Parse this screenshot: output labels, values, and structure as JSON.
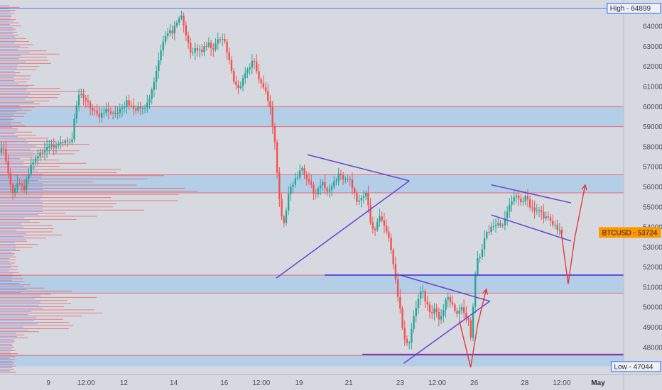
{
  "chart_data": {
    "type": "candlestick",
    "symbol": "BTCUSD",
    "ylim": [
      46650,
      65100
    ],
    "y_ticks": [
      48000,
      49000,
      50000,
      51000,
      52000,
      53000,
      54000,
      55000,
      56000,
      57000,
      58000,
      59000,
      60000,
      61000,
      62000,
      63000,
      64000
    ],
    "y_tick_labels": [
      "48000",
      "49000",
      "50000",
      "51000",
      "52000",
      "53000",
      "54000",
      "55000",
      "56000",
      "57000",
      "58000",
      "59000",
      "60000",
      "61000",
      "62000",
      "63000",
      "64000"
    ],
    "x_range": [
      0,
      840
    ],
    "x_ticks": [
      {
        "t": 68,
        "label": "9",
        "bold": false
      },
      {
        "t": 121,
        "label": "12:00",
        "bold": false
      },
      {
        "t": 174,
        "label": "12",
        "bold": false
      },
      {
        "t": 244,
        "label": "14",
        "bold": false
      },
      {
        "t": 315,
        "label": "16",
        "bold": false
      },
      {
        "t": 367,
        "label": "12:00",
        "bold": false
      },
      {
        "t": 420,
        "label": "19",
        "bold": false
      },
      {
        "t": 490,
        "label": "21",
        "bold": false
      },
      {
        "t": 562,
        "label": "23",
        "bold": false
      },
      {
        "t": 614,
        "label": "12:00",
        "bold": false
      },
      {
        "t": 666,
        "label": "26",
        "bold": false
      },
      {
        "t": 737,
        "label": "28",
        "bold": false
      },
      {
        "t": 789,
        "label": "12:00",
        "bold": false
      },
      {
        "t": 840,
        "label": "May",
        "bold": true
      }
    ],
    "high": {
      "label": "High",
      "value": 64899,
      "value_text": "64899"
    },
    "low": {
      "label": "Low",
      "value": 47044,
      "value_text": "47044"
    },
    "last": {
      "label": "BTCUSD",
      "value": 53724,
      "value_text": "53724"
    },
    "price_path": [
      [
        0,
        57700
      ],
      [
        6,
        58000
      ],
      [
        12,
        56500
      ],
      [
        18,
        55800
      ],
      [
        26,
        56300
      ],
      [
        34,
        55900
      ],
      [
        44,
        57200
      ],
      [
        54,
        57600
      ],
      [
        64,
        57900
      ],
      [
        78,
        58100
      ],
      [
        92,
        58300
      ],
      [
        100,
        58100
      ],
      [
        106,
        59800
      ],
      [
        112,
        60700
      ],
      [
        120,
        60300
      ],
      [
        128,
        59900
      ],
      [
        138,
        59500
      ],
      [
        148,
        59900
      ],
      [
        158,
        59600
      ],
      [
        168,
        59800
      ],
      [
        178,
        60200
      ],
      [
        188,
        59800
      ],
      [
        198,
        60000
      ],
      [
        206,
        60100
      ],
      [
        214,
        60800
      ],
      [
        220,
        61800
      ],
      [
        226,
        62800
      ],
      [
        232,
        63500
      ],
      [
        238,
        63700
      ],
      [
        244,
        63800
      ],
      [
        250,
        64300
      ],
      [
        256,
        64500
      ],
      [
        262,
        63400
      ],
      [
        268,
        62600
      ],
      [
        276,
        62900
      ],
      [
        284,
        62800
      ],
      [
        292,
        63100
      ],
      [
        300,
        62900
      ],
      [
        308,
        63400
      ],
      [
        316,
        63200
      ],
      [
        322,
        62300
      ],
      [
        328,
        61200
      ],
      [
        334,
        60800
      ],
      [
        342,
        61400
      ],
      [
        350,
        62000
      ],
      [
        356,
        62300
      ],
      [
        362,
        61400
      ],
      [
        368,
        61000
      ],
      [
        374,
        60700
      ],
      [
        380,
        59900
      ],
      [
        386,
        58100
      ],
      [
        392,
        55600
      ],
      [
        398,
        54000
      ],
      [
        404,
        55400
      ],
      [
        410,
        56100
      ],
      [
        416,
        56400
      ],
      [
        424,
        57000
      ],
      [
        430,
        56500
      ],
      [
        436,
        56200
      ],
      [
        442,
        55400
      ],
      [
        448,
        56000
      ],
      [
        454,
        56300
      ],
      [
        460,
        55600
      ],
      [
        466,
        56000
      ],
      [
        472,
        56400
      ],
      [
        478,
        56700
      ],
      [
        484,
        56300
      ],
      [
        490,
        56600
      ],
      [
        496,
        55800
      ],
      [
        502,
        55100
      ],
      [
        508,
        55500
      ],
      [
        514,
        55800
      ],
      [
        520,
        54400
      ],
      [
        526,
        53600
      ],
      [
        532,
        54600
      ],
      [
        538,
        54200
      ],
      [
        544,
        53700
      ],
      [
        550,
        52600
      ],
      [
        556,
        51200
      ],
      [
        562,
        49800
      ],
      [
        568,
        48400
      ],
      [
        574,
        48100
      ],
      [
        580,
        49500
      ],
      [
        586,
        50200
      ],
      [
        592,
        50900
      ],
      [
        598,
        50300
      ],
      [
        604,
        49600
      ],
      [
        610,
        50000
      ],
      [
        616,
        49400
      ],
      [
        622,
        49800
      ],
      [
        628,
        50600
      ],
      [
        634,
        50200
      ],
      [
        640,
        49600
      ],
      [
        646,
        50000
      ],
      [
        652,
        49700
      ],
      [
        658,
        49300
      ],
      [
        662,
        48300
      ],
      [
        666,
        51200
      ],
      [
        670,
        52400
      ],
      [
        674,
        52600
      ],
      [
        678,
        53100
      ],
      [
        684,
        53700
      ],
      [
        690,
        53900
      ],
      [
        696,
        54200
      ],
      [
        702,
        54000
      ],
      [
        708,
        54300
      ],
      [
        714,
        55100
      ],
      [
        720,
        55300
      ],
      [
        726,
        55500
      ],
      [
        732,
        55200
      ],
      [
        738,
        55600
      ],
      [
        744,
        55000
      ],
      [
        750,
        54800
      ],
      [
        756,
        55000
      ],
      [
        762,
        54500
      ],
      [
        768,
        54600
      ],
      [
        774,
        54300
      ],
      [
        780,
        54000
      ],
      [
        786,
        53800
      ],
      [
        792,
        53724
      ]
    ],
    "horizontal_levels": [
      {
        "value": 64899,
        "color": "#2962ff"
      },
      {
        "value": 60000,
        "color": "#ef5350"
      },
      {
        "value": 59000,
        "color": "#ef5350"
      },
      {
        "value": 56600,
        "color": "#ef5350"
      },
      {
        "value": 55700,
        "color": "#ef5350"
      },
      {
        "value": 51600,
        "color": "#ef5350"
      },
      {
        "value": 50700,
        "color": "#ef5350"
      },
      {
        "value": 47600,
        "color": "#ef5350"
      }
    ],
    "zones": [
      {
        "from": 59000,
        "to": 60000
      },
      {
        "from": 55700,
        "to": 56600
      },
      {
        "from": 50700,
        "to": 51600
      },
      {
        "from": 47050,
        "to": 47600
      }
    ],
    "trendlines": [
      {
        "name": "triangle-1-upper",
        "x1": 432,
        "y1": 57600,
        "x2": 575,
        "y2": 56300,
        "color": "#6a4ccf"
      },
      {
        "name": "triangle-1-lower",
        "x1": 388,
        "y1": 51450,
        "x2": 575,
        "y2": 56300,
        "color": "#6a4ccf"
      },
      {
        "name": "triangle-2-upper",
        "x1": 562,
        "y1": 51600,
        "x2": 688,
        "y2": 50300,
        "color": "#6a4ccf"
      },
      {
        "name": "triangle-2-lower",
        "x1": 567,
        "y1": 47200,
        "x2": 688,
        "y2": 50300,
        "color": "#6a4ccf"
      },
      {
        "name": "support-51600",
        "x1": 456,
        "y1": 51600,
        "x2": 903,
        "y2": 51600,
        "color": "#4a2fd6"
      },
      {
        "name": "support-47650",
        "x1": 509,
        "y1": 47650,
        "x2": 903,
        "y2": 47650,
        "color": "#4a2fd6"
      },
      {
        "name": "channel-upper",
        "x1": 690,
        "y1": 56100,
        "x2": 802,
        "y2": 55200,
        "color": "#6a4ccf"
      },
      {
        "name": "channel-lower",
        "x1": 690,
        "y1": 54600,
        "x2": 802,
        "y2": 53300,
        "color": "#6a4ccf"
      }
    ],
    "arrows": [
      {
        "name": "arrow-down-1",
        "points": [
          [
            645,
            49350
          ],
          [
            661,
            47000
          ],
          [
            671,
            49150
          ],
          [
            683,
            50900
          ]
        ],
        "color": "#e53935"
      },
      {
        "name": "arrow-down-2",
        "points": [
          [
            788,
            53800
          ],
          [
            798,
            51150
          ],
          [
            807,
            53400
          ],
          [
            822,
            56100
          ]
        ],
        "color": "#e53935"
      }
    ],
    "volume_profile_color": "#ef5350",
    "volume_profile_alt_color": "#2962ff",
    "colors": {
      "up": "#26a69a",
      "down": "#ef5350",
      "zone": "#a9c9ea",
      "axis_text": "#4a4f5c",
      "last_price": "#ff9800"
    }
  }
}
